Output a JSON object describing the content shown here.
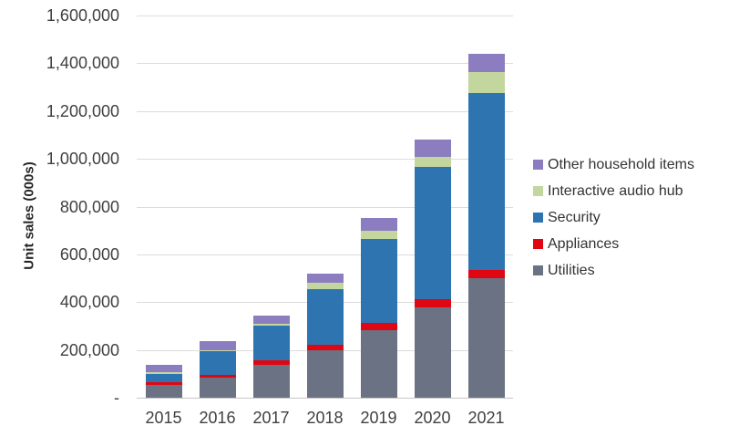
{
  "chart_data": {
    "type": "bar",
    "stacked": true,
    "title": "",
    "xlabel": "",
    "ylabel": "Unit sales (000s)",
    "categories": [
      "2015",
      "2016",
      "2017",
      "2018",
      "2019",
      "2020",
      "2021"
    ],
    "series": [
      {
        "name": "Utilities",
        "color": "#6a7284",
        "values": [
          52000,
          83000,
          137000,
          198000,
          284000,
          379000,
          500000
        ]
      },
      {
        "name": "Appliances",
        "color": "#e00713",
        "values": [
          12000,
          14000,
          19000,
          22000,
          29000,
          32000,
          34000
        ]
      },
      {
        "name": "Security",
        "color": "#2e74b1",
        "values": [
          36000,
          98000,
          144000,
          233000,
          352000,
          556000,
          742000
        ]
      },
      {
        "name": "Interactive audio hub",
        "color": "#c3d69d",
        "values": [
          8000,
          5000,
          11000,
          28000,
          32000,
          42000,
          86000
        ]
      },
      {
        "name": "Other household items",
        "color": "#8c7dc0",
        "values": [
          31000,
          35000,
          33000,
          38000,
          55000,
          70000,
          76000
        ]
      }
    ],
    "totals": [
      139000,
      235000,
      344000,
      519000,
      752000,
      1079000,
      1438000
    ],
    "ylim": [
      0,
      1600000
    ],
    "ytick_step": 200000,
    "ytick_labels": [
      "-",
      "200,000",
      "400,000",
      "600,000",
      "800,000",
      "1,000,000",
      "1,200,000",
      "1,400,000",
      "1,600,000"
    ],
    "grid": true,
    "legend_position": "right",
    "legend_order": [
      "Other household items",
      "Interactive audio hub",
      "Security",
      "Appliances",
      "Utilities"
    ]
  },
  "colors": {
    "background": "#ffffff",
    "gridline": "#dcdcdc",
    "axis_line": "#c6c6c6",
    "tick_text": "#404040",
    "legend_text": "#333333",
    "axis_title_text": "#262626"
  }
}
